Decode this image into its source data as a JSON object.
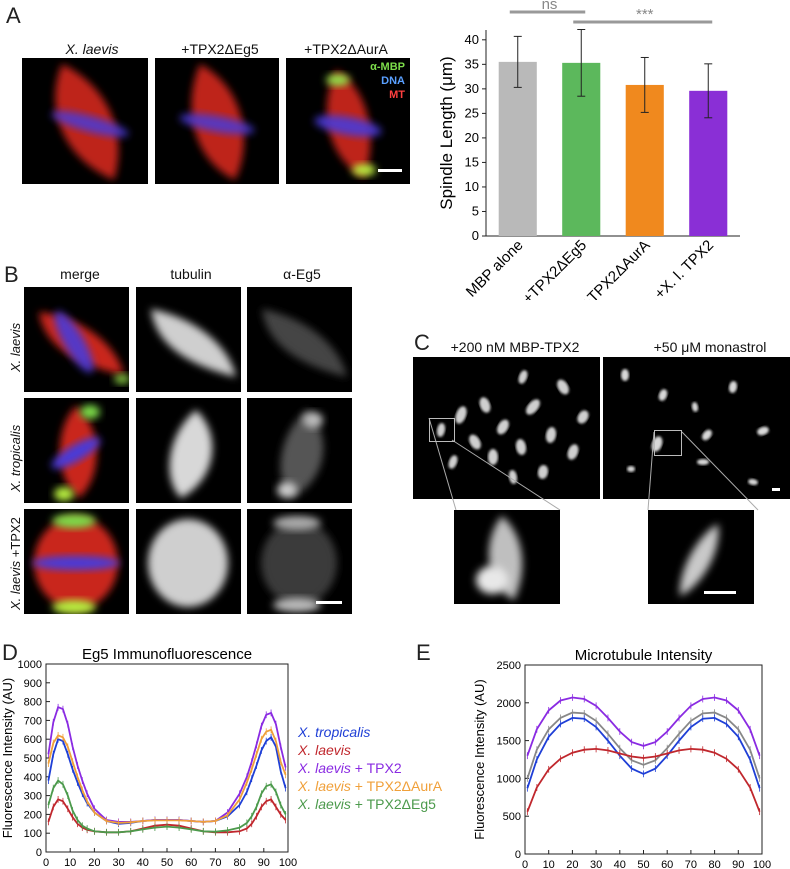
{
  "panels": {
    "a": {
      "letter": "A",
      "conditions": [
        {
          "label": "X. laevis",
          "italic": true
        },
        {
          "label": "+TPX2ΔEg5",
          "italic": false
        },
        {
          "label": "+TPX2ΔAurA",
          "italic": false
        }
      ],
      "channels": [
        {
          "label": "α-MBP",
          "color": "#7ddc4a"
        },
        {
          "label": "DNA",
          "color": "#5aa0ff"
        },
        {
          "label": "MT",
          "color": "#ff4040"
        }
      ]
    },
    "b": {
      "letter": "B",
      "columns": [
        "merge",
        "tubulin",
        "α-Eg5"
      ],
      "rows": [
        {
          "species": "X. laevis",
          "suffix": ""
        },
        {
          "species": "X. tropicalis",
          "suffix": ""
        },
        {
          "species": "X. laevis",
          "suffix": " +TPX2"
        }
      ]
    },
    "c": {
      "letter": "C",
      "left_label": "+200 nM MBP-TPX2",
      "right_label": "+50 μM monastrol"
    },
    "d": {
      "letter": "D"
    },
    "e": {
      "letter": "E"
    }
  },
  "chart_data": [
    {
      "type": "bar",
      "panel": "A",
      "title": "",
      "xlabel": "",
      "ylabel": "Spindle Length (μm)",
      "categories": [
        "MBP alone",
        "+TPX2ΔEg5",
        "+TPX2ΔAurA",
        "+X. l. TPX2"
      ],
      "values": [
        35.5,
        35.3,
        30.8,
        29.6
      ],
      "errors": [
        5.2,
        6.8,
        5.6,
        5.5
      ],
      "colors": [
        "#b9b9b9",
        "#5cb85c",
        "#f0891e",
        "#8a2fd6"
      ],
      "ylim": [
        0,
        42
      ],
      "yticks": [
        0,
        5,
        10,
        15,
        20,
        25,
        30,
        35,
        40
      ],
      "significance": [
        {
          "from": 0,
          "to": 1,
          "label": "ns"
        },
        {
          "from": 1,
          "to": 3,
          "label": "***"
        }
      ]
    },
    {
      "type": "line",
      "panel": "D",
      "title": "Eg5 Immunofluorescence",
      "xlabel": "",
      "ylabel": "Fluorescence Intensity (AU)",
      "xlim": [
        0,
        100
      ],
      "ylim": [
        0,
        1000
      ],
      "xticks": [
        0,
        10,
        20,
        30,
        40,
        50,
        60,
        70,
        80,
        90,
        100
      ],
      "yticks": [
        0,
        100,
        200,
        300,
        400,
        500,
        600,
        700,
        800,
        900,
        1000
      ],
      "x": [
        1,
        3,
        5,
        7,
        9,
        11,
        13,
        15,
        17,
        20,
        25,
        30,
        35,
        40,
        45,
        50,
        55,
        60,
        65,
        70,
        75,
        80,
        83,
        85,
        87,
        89,
        91,
        93,
        95,
        97,
        99
      ],
      "series": [
        {
          "name": "X. tropicalis",
          "color": "#1f3fd6",
          "values": [
            380,
            520,
            600,
            590,
            520,
            440,
            370,
            310,
            260,
            210,
            165,
            150,
            155,
            165,
            170,
            170,
            170,
            165,
            160,
            165,
            190,
            250,
            320,
            390,
            460,
            540,
            590,
            610,
            560,
            430,
            340
          ]
        },
        {
          "name": "X. laevis",
          "color": "#c0272d",
          "values": [
            160,
            240,
            280,
            270,
            230,
            185,
            150,
            130,
            118,
            110,
            105,
            105,
            110,
            125,
            140,
            145,
            140,
            125,
            110,
            105,
            105,
            110,
            125,
            150,
            190,
            240,
            270,
            280,
            240,
            200,
            170
          ]
        },
        {
          "name": "X. laevis + TPX2",
          "color": "#8a2be2",
          "values": [
            520,
            690,
            770,
            760,
            680,
            560,
            460,
            380,
            310,
            230,
            170,
            160,
            160,
            165,
            170,
            170,
            170,
            165,
            160,
            165,
            210,
            310,
            400,
            480,
            570,
            670,
            730,
            740,
            680,
            560,
            450
          ]
        },
        {
          "name": "X. laevis + TPX2ΔAurA",
          "color": "#f0a03a",
          "values": [
            470,
            580,
            620,
            610,
            560,
            480,
            400,
            330,
            270,
            210,
            165,
            155,
            158,
            165,
            168,
            168,
            168,
            165,
            160,
            165,
            195,
            280,
            370,
            440,
            520,
            600,
            640,
            650,
            590,
            480,
            410
          ]
        },
        {
          "name": "X. laevis + TPX2ΔEg5",
          "color": "#4c9a4c",
          "values": [
            250,
            340,
            380,
            360,
            300,
            220,
            170,
            140,
            125,
            110,
            105,
            105,
            110,
            120,
            130,
            135,
            130,
            120,
            110,
            108,
            115,
            130,
            155,
            190,
            240,
            310,
            350,
            360,
            320,
            250,
            200
          ]
        }
      ]
    },
    {
      "type": "line",
      "panel": "E",
      "title": "Microtubule Intensity",
      "xlabel": "",
      "ylabel": "Fluorescence Intensity (AU)",
      "xlim": [
        0,
        100
      ],
      "ylim": [
        0,
        2500
      ],
      "xticks": [
        0,
        10,
        20,
        30,
        40,
        50,
        60,
        70,
        80,
        90,
        100
      ],
      "yticks": [
        0,
        500,
        1000,
        1500,
        2000,
        2500
      ],
      "x": [
        1,
        5,
        10,
        15,
        20,
        25,
        30,
        35,
        40,
        45,
        50,
        55,
        60,
        65,
        70,
        75,
        80,
        85,
        90,
        95,
        99
      ],
      "series": [
        {
          "color": "#8a2be2",
          "values": [
            1300,
            1650,
            1900,
            2030,
            2070,
            2050,
            1960,
            1800,
            1620,
            1480,
            1430,
            1480,
            1620,
            1800,
            1960,
            2050,
            2070,
            2030,
            1900,
            1650,
            1300
          ]
        },
        {
          "color": "#888888",
          "values": [
            1000,
            1380,
            1650,
            1800,
            1870,
            1860,
            1760,
            1590,
            1400,
            1240,
            1180,
            1240,
            1400,
            1590,
            1760,
            1860,
            1870,
            1800,
            1650,
            1380,
            1000
          ]
        },
        {
          "color": "#1f3fd6",
          "values": [
            870,
            1250,
            1550,
            1720,
            1800,
            1790,
            1680,
            1500,
            1300,
            1130,
            1060,
            1130,
            1300,
            1500,
            1680,
            1790,
            1800,
            1720,
            1550,
            1250,
            870
          ]
        },
        {
          "color": "#c0272d",
          "values": [
            560,
            880,
            1120,
            1260,
            1340,
            1380,
            1390,
            1370,
            1330,
            1290,
            1270,
            1290,
            1330,
            1370,
            1390,
            1380,
            1340,
            1260,
            1120,
            880,
            560
          ]
        }
      ]
    }
  ]
}
